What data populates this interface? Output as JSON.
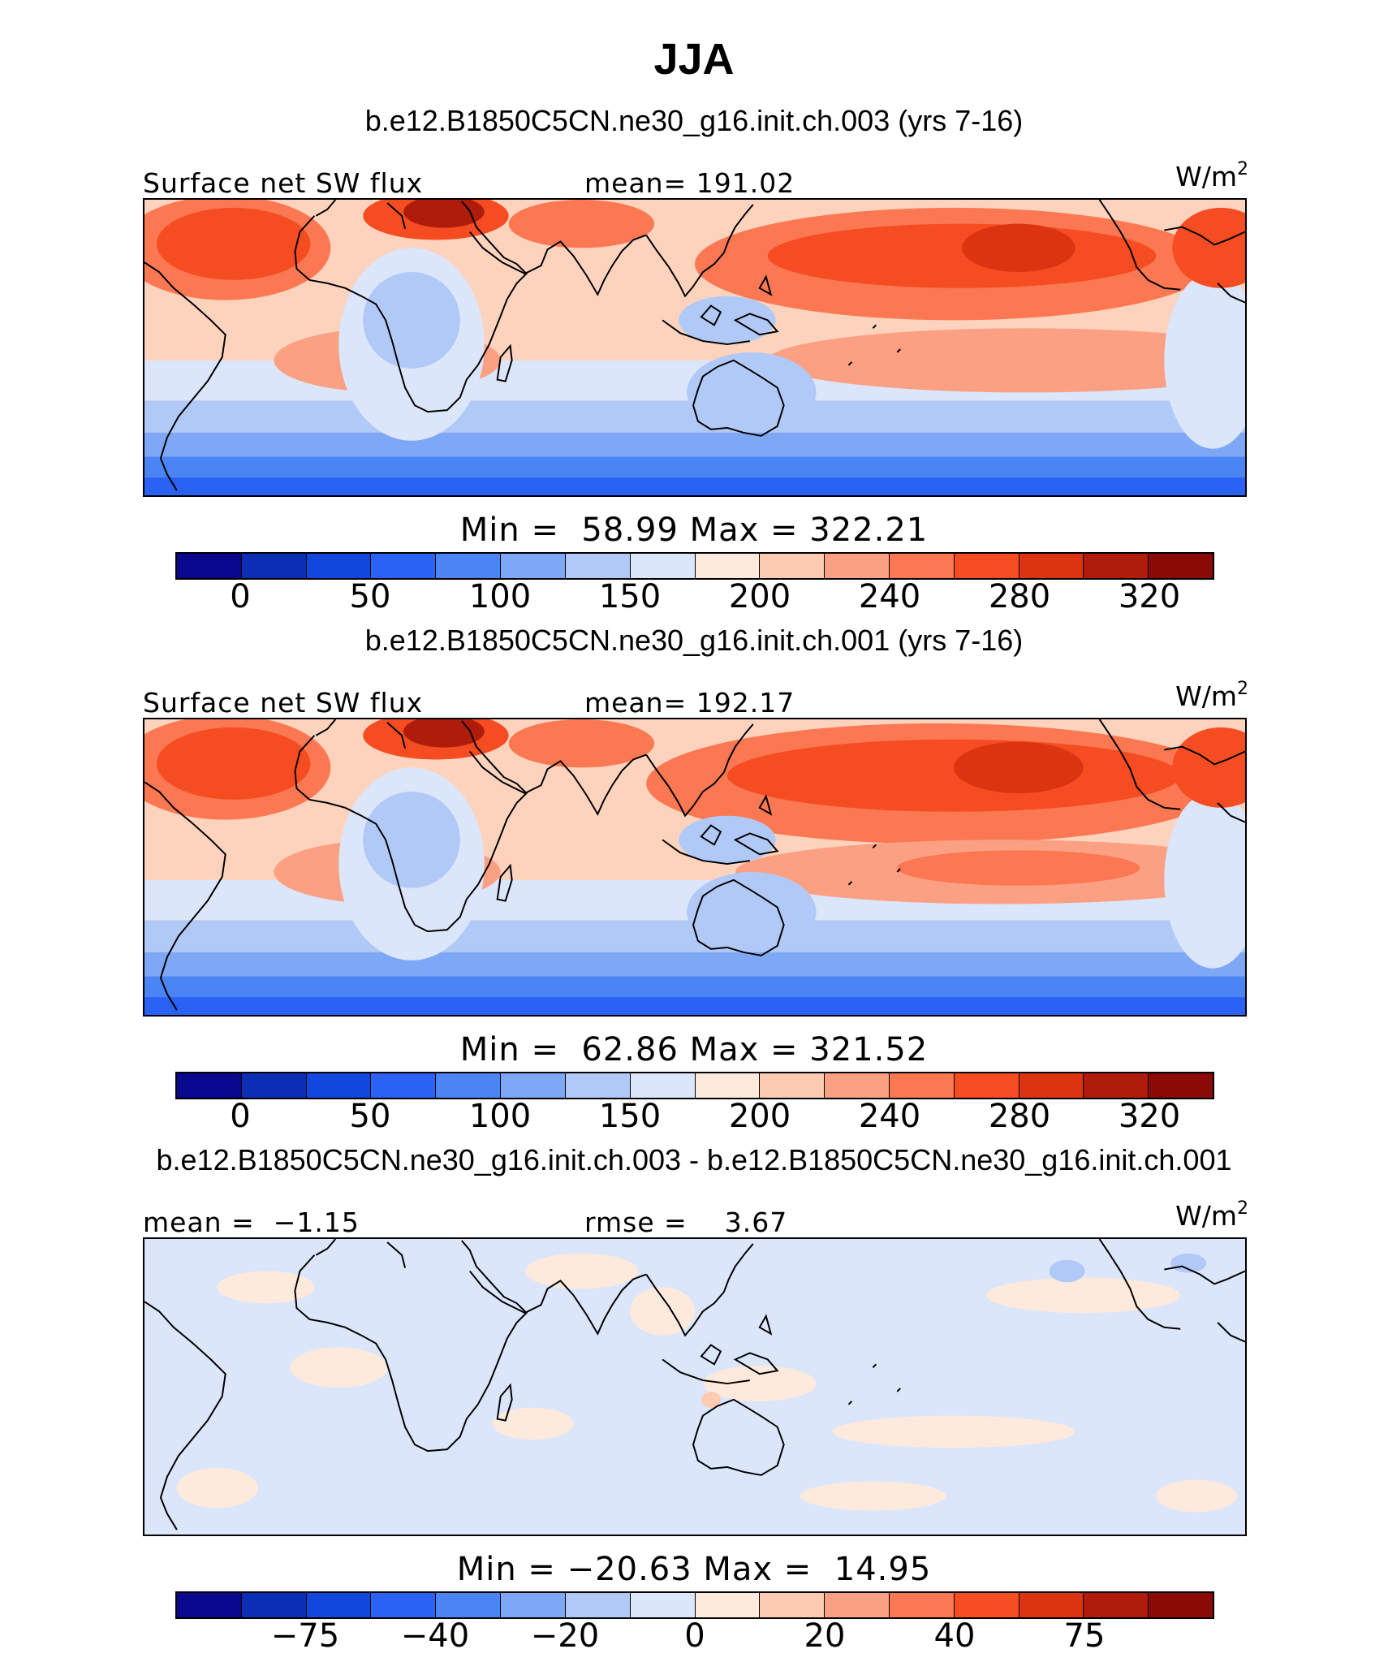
{
  "title": "JJA",
  "colormap": [
    "#08078e",
    "#0a2fb4",
    "#1147dc",
    "#2962f5",
    "#4b84f5",
    "#7ea8f5",
    "#b1c9f7",
    "#dbe6fb",
    "#feeadc",
    "#fdcbb1",
    "#fca083",
    "#fb7852",
    "#f64c22",
    "#dc3411",
    "#b01c0c",
    "#8a0a05"
  ],
  "panels": [
    {
      "title": "b.e12.B1850C5CN.ne30_g16.init.ch.003 (yrs 7-16)",
      "left_label": "Surface net SW flux",
      "center_label": "mean= 191.02",
      "units": "W/m",
      "units_sup": "2",
      "minmax": "Min =  58.99 Max = 322.21",
      "ticks": [
        "0",
        "50",
        "100",
        "150",
        "200",
        "240",
        "280",
        "320"
      ],
      "stats": {
        "min": 58.99,
        "max": 322.21,
        "mean": 191.02
      }
    },
    {
      "title": "b.e12.B1850C5CN.ne30_g16.init.ch.001 (yrs 7-16)",
      "left_label": "Surface net SW flux",
      "center_label": "mean= 192.17",
      "units": "W/m",
      "units_sup": "2",
      "minmax": "Min =  62.86 Max = 321.52",
      "ticks": [
        "0",
        "50",
        "100",
        "150",
        "200",
        "240",
        "280",
        "320"
      ],
      "stats": {
        "min": 62.86,
        "max": 321.52,
        "mean": 192.17
      }
    },
    {
      "title": "b.e12.B1850C5CN.ne30_g16.init.ch.003 - b.e12.B1850C5CN.ne30_g16.init.ch.001",
      "left_label": "mean =  −1.15",
      "center_label": "rmse =    3.67",
      "units": "W/m",
      "units_sup": "2",
      "minmax": "Min = −20.63 Max =  14.95",
      "ticks": [
        "−75",
        "−40",
        "−20",
        "0",
        "20",
        "40",
        "75"
      ],
      "stats": {
        "min": -20.63,
        "max": 14.95,
        "mean": -1.15,
        "rmse": 3.67
      }
    }
  ]
}
